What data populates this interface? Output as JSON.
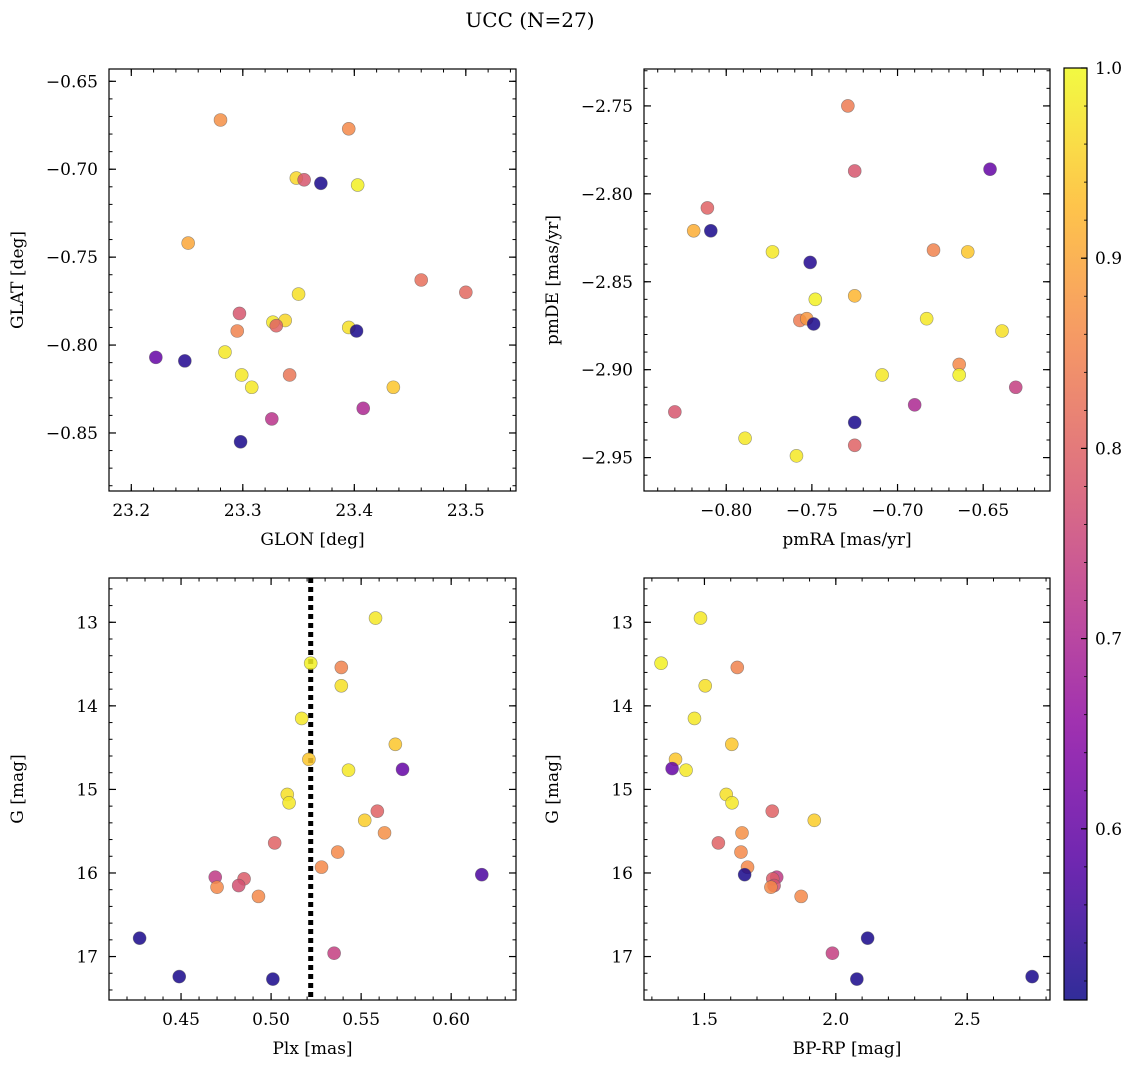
{
  "figure": {
    "title": "UCC (N=27)"
  },
  "colorbar": {
    "min": 0.51,
    "max": 1.0,
    "ticks": [
      0.6,
      0.7,
      0.8,
      0.9,
      1.0
    ],
    "tick_labels": [
      "0.6",
      "0.7",
      "0.8",
      "0.9",
      "1.0"
    ],
    "colormap": "plasma"
  },
  "chart_data": [
    {
      "type": "scatter",
      "panel": "top-left",
      "xlabel": "GLON [deg]",
      "ylabel": "GLAT [deg]",
      "xlim": [
        23.18,
        23.545
      ],
      "ylim": [
        -0.883,
        -0.643
      ],
      "y_inverted": false,
      "xticks": [
        23.2,
        23.3,
        23.4,
        23.5
      ],
      "xtick_labels": [
        "23.2",
        "23.3",
        "23.4",
        "23.5"
      ],
      "yticks": [
        -0.65,
        -0.7,
        -0.75,
        -0.8,
        -0.85
      ],
      "ytick_labels": [
        "−0.65",
        "−0.70",
        "−0.75",
        "−0.80",
        "−0.85"
      ],
      "points": [
        {
          "x": 23.28,
          "y": -0.672,
          "c": 0.87
        },
        {
          "x": 23.395,
          "y": -0.677,
          "c": 0.86
        },
        {
          "x": 23.348,
          "y": -0.705,
          "c": 0.96
        },
        {
          "x": 23.355,
          "y": -0.706,
          "c": 0.78
        },
        {
          "x": 23.37,
          "y": -0.708,
          "c": 0.52
        },
        {
          "x": 23.403,
          "y": -0.709,
          "c": 0.99
        },
        {
          "x": 23.251,
          "y": -0.742,
          "c": 0.9
        },
        {
          "x": 23.46,
          "y": -0.763,
          "c": 0.82
        },
        {
          "x": 23.5,
          "y": -0.77,
          "c": 0.81
        },
        {
          "x": 23.35,
          "y": -0.771,
          "c": 0.97
        },
        {
          "x": 23.297,
          "y": -0.782,
          "c": 0.78
        },
        {
          "x": 23.338,
          "y": -0.786,
          "c": 0.96
        },
        {
          "x": 23.327,
          "y": -0.787,
          "c": 0.98
        },
        {
          "x": 23.33,
          "y": -0.789,
          "c": 0.8
        },
        {
          "x": 23.395,
          "y": -0.79,
          "c": 0.97
        },
        {
          "x": 23.295,
          "y": -0.792,
          "c": 0.85
        },
        {
          "x": 23.402,
          "y": -0.792,
          "c": 0.52
        },
        {
          "x": 23.284,
          "y": -0.804,
          "c": 0.98
        },
        {
          "x": 23.222,
          "y": -0.807,
          "c": 0.6
        },
        {
          "x": 23.248,
          "y": -0.809,
          "c": 0.53
        },
        {
          "x": 23.342,
          "y": -0.817,
          "c": 0.83
        },
        {
          "x": 23.299,
          "y": -0.817,
          "c": 0.98
        },
        {
          "x": 23.308,
          "y": -0.824,
          "c": 0.98
        },
        {
          "x": 23.435,
          "y": -0.824,
          "c": 0.94
        },
        {
          "x": 23.408,
          "y": -0.836,
          "c": 0.7
        },
        {
          "x": 23.326,
          "y": -0.842,
          "c": 0.72
        },
        {
          "x": 23.298,
          "y": -0.855,
          "c": 0.52
        }
      ]
    },
    {
      "type": "scatter",
      "panel": "top-right",
      "xlabel": "pmRA [mas/yr]",
      "ylabel": "pmDE [mas/yr]",
      "xlim": [
        -0.848,
        -0.611
      ],
      "ylim": [
        -2.969,
        -2.729
      ],
      "y_inverted": false,
      "xticks": [
        -0.8,
        -0.75,
        -0.7,
        -0.65
      ],
      "xtick_labels": [
        "−0.80",
        "−0.75",
        "−0.70",
        "−0.65"
      ],
      "yticks": [
        -2.75,
        -2.8,
        -2.85,
        -2.9,
        -2.95
      ],
      "ytick_labels": [
        "−2.75",
        "−2.80",
        "−2.85",
        "−2.90",
        "−2.95"
      ],
      "points": [
        {
          "x": -0.729,
          "y": -2.75,
          "c": 0.84
        },
        {
          "x": -0.646,
          "y": -2.786,
          "c": 0.6
        },
        {
          "x": -0.725,
          "y": -2.787,
          "c": 0.78
        },
        {
          "x": -0.811,
          "y": -2.808,
          "c": 0.8
        },
        {
          "x": -0.819,
          "y": -2.821,
          "c": 0.91
        },
        {
          "x": -0.809,
          "y": -2.821,
          "c": 0.52
        },
        {
          "x": -0.679,
          "y": -2.832,
          "c": 0.85
        },
        {
          "x": -0.659,
          "y": -2.833,
          "c": 0.94
        },
        {
          "x": -0.773,
          "y": -2.833,
          "c": 0.98
        },
        {
          "x": -0.751,
          "y": -2.839,
          "c": 0.53
        },
        {
          "x": -0.725,
          "y": -2.858,
          "c": 0.92
        },
        {
          "x": -0.748,
          "y": -2.86,
          "c": 0.99
        },
        {
          "x": -0.757,
          "y": -2.872,
          "c": 0.84
        },
        {
          "x": -0.753,
          "y": -2.871,
          "c": 0.88
        },
        {
          "x": -0.683,
          "y": -2.871,
          "c": 0.98
        },
        {
          "x": -0.749,
          "y": -2.874,
          "c": 0.52
        },
        {
          "x": -0.639,
          "y": -2.878,
          "c": 0.97
        },
        {
          "x": -0.664,
          "y": -2.897,
          "c": 0.86
        },
        {
          "x": -0.664,
          "y": -2.903,
          "c": 0.99
        },
        {
          "x": -0.709,
          "y": -2.903,
          "c": 0.98
        },
        {
          "x": -0.631,
          "y": -2.91,
          "c": 0.74
        },
        {
          "x": -0.69,
          "y": -2.92,
          "c": 0.7
        },
        {
          "x": -0.83,
          "y": -2.924,
          "c": 0.78
        },
        {
          "x": -0.725,
          "y": -2.93,
          "c": 0.52
        },
        {
          "x": -0.789,
          "y": -2.939,
          "c": 0.98
        },
        {
          "x": -0.725,
          "y": -2.943,
          "c": 0.8
        },
        {
          "x": -0.759,
          "y": -2.949,
          "c": 0.98
        }
      ]
    },
    {
      "type": "scatter",
      "panel": "bottom-left",
      "xlabel": "Plx [mas]",
      "ylabel": "G [mag]",
      "xlim": [
        0.41,
        0.636
      ],
      "ylim": [
        17.52,
        12.47
      ],
      "y_inverted": true,
      "vline": 0.522,
      "xticks": [
        0.45,
        0.5,
        0.55,
        0.6
      ],
      "xtick_labels": [
        "0.45",
        "0.50",
        "0.55",
        "0.60"
      ],
      "yticks": [
        13,
        14,
        15,
        16,
        17
      ],
      "ytick_labels": [
        "13",
        "14",
        "15",
        "16",
        "17"
      ],
      "points": [
        {
          "x": 0.558,
          "y": 12.95,
          "c": 0.98
        },
        {
          "x": 0.522,
          "y": 13.49,
          "c": 0.99
        },
        {
          "x": 0.539,
          "y": 13.54,
          "c": 0.85
        },
        {
          "x": 0.539,
          "y": 13.76,
          "c": 0.97
        },
        {
          "x": 0.517,
          "y": 14.15,
          "c": 0.98
        },
        {
          "x": 0.569,
          "y": 14.46,
          "c": 0.94
        },
        {
          "x": 0.521,
          "y": 14.64,
          "c": 0.94
        },
        {
          "x": 0.573,
          "y": 14.76,
          "c": 0.6
        },
        {
          "x": 0.543,
          "y": 14.77,
          "c": 0.98
        },
        {
          "x": 0.509,
          "y": 15.06,
          "c": 0.97
        },
        {
          "x": 0.51,
          "y": 15.16,
          "c": 0.98
        },
        {
          "x": 0.559,
          "y": 15.26,
          "c": 0.8
        },
        {
          "x": 0.552,
          "y": 15.37,
          "c": 0.95
        },
        {
          "x": 0.563,
          "y": 15.52,
          "c": 0.87
        },
        {
          "x": 0.502,
          "y": 15.64,
          "c": 0.8
        },
        {
          "x": 0.537,
          "y": 15.75,
          "c": 0.86
        },
        {
          "x": 0.528,
          "y": 15.93,
          "c": 0.86
        },
        {
          "x": 0.617,
          "y": 16.02,
          "c": 0.57
        },
        {
          "x": 0.469,
          "y": 16.05,
          "c": 0.73
        },
        {
          "x": 0.485,
          "y": 16.07,
          "c": 0.79
        },
        {
          "x": 0.482,
          "y": 16.15,
          "c": 0.77
        },
        {
          "x": 0.47,
          "y": 16.17,
          "c": 0.86
        },
        {
          "x": 0.493,
          "y": 16.28,
          "c": 0.86
        },
        {
          "x": 0.427,
          "y": 16.78,
          "c": 0.52
        },
        {
          "x": 0.535,
          "y": 16.96,
          "c": 0.74
        },
        {
          "x": 0.449,
          "y": 17.24,
          "c": 0.52
        },
        {
          "x": 0.501,
          "y": 17.27,
          "c": 0.52
        }
      ]
    },
    {
      "type": "scatter",
      "panel": "bottom-right",
      "xlabel": "BP-RP [mag]",
      "ylabel": "G [mag]",
      "xlim": [
        1.27,
        2.815
      ],
      "ylim": [
        17.52,
        12.47
      ],
      "y_inverted": true,
      "xticks": [
        1.5,
        2.0,
        2.5
      ],
      "xtick_labels": [
        "1.5",
        "2.0",
        "2.5"
      ],
      "yticks": [
        13,
        14,
        15,
        16,
        17
      ],
      "ytick_labels": [
        "13",
        "14",
        "15",
        "16",
        "17"
      ],
      "points": [
        {
          "x": 1.485,
          "y": 12.95,
          "c": 0.98
        },
        {
          "x": 1.335,
          "y": 13.49,
          "c": 0.99
        },
        {
          "x": 1.625,
          "y": 13.54,
          "c": 0.85
        },
        {
          "x": 1.503,
          "y": 13.76,
          "c": 0.97
        },
        {
          "x": 1.462,
          "y": 14.15,
          "c": 0.98
        },
        {
          "x": 1.604,
          "y": 14.46,
          "c": 0.94
        },
        {
          "x": 1.39,
          "y": 14.64,
          "c": 0.94
        },
        {
          "x": 1.377,
          "y": 14.75,
          "c": 0.6
        },
        {
          "x": 1.43,
          "y": 14.77,
          "c": 0.98
        },
        {
          "x": 1.583,
          "y": 15.06,
          "c": 0.97
        },
        {
          "x": 1.605,
          "y": 15.16,
          "c": 0.98
        },
        {
          "x": 1.758,
          "y": 15.26,
          "c": 0.8
        },
        {
          "x": 1.918,
          "y": 15.37,
          "c": 0.95
        },
        {
          "x": 1.643,
          "y": 15.52,
          "c": 0.87
        },
        {
          "x": 1.553,
          "y": 15.64,
          "c": 0.8
        },
        {
          "x": 1.639,
          "y": 15.75,
          "c": 0.86
        },
        {
          "x": 1.664,
          "y": 15.93,
          "c": 0.86
        },
        {
          "x": 1.653,
          "y": 16.02,
          "c": 0.52
        },
        {
          "x": 1.775,
          "y": 16.05,
          "c": 0.73
        },
        {
          "x": 1.76,
          "y": 16.07,
          "c": 0.79
        },
        {
          "x": 1.765,
          "y": 16.15,
          "c": 0.77
        },
        {
          "x": 1.753,
          "y": 16.17,
          "c": 0.86
        },
        {
          "x": 1.868,
          "y": 16.28,
          "c": 0.86
        },
        {
          "x": 2.121,
          "y": 16.78,
          "c": 0.52
        },
        {
          "x": 1.987,
          "y": 16.96,
          "c": 0.74
        },
        {
          "x": 2.747,
          "y": 17.24,
          "c": 0.52
        },
        {
          "x": 2.08,
          "y": 17.27,
          "c": 0.52
        }
      ]
    }
  ]
}
